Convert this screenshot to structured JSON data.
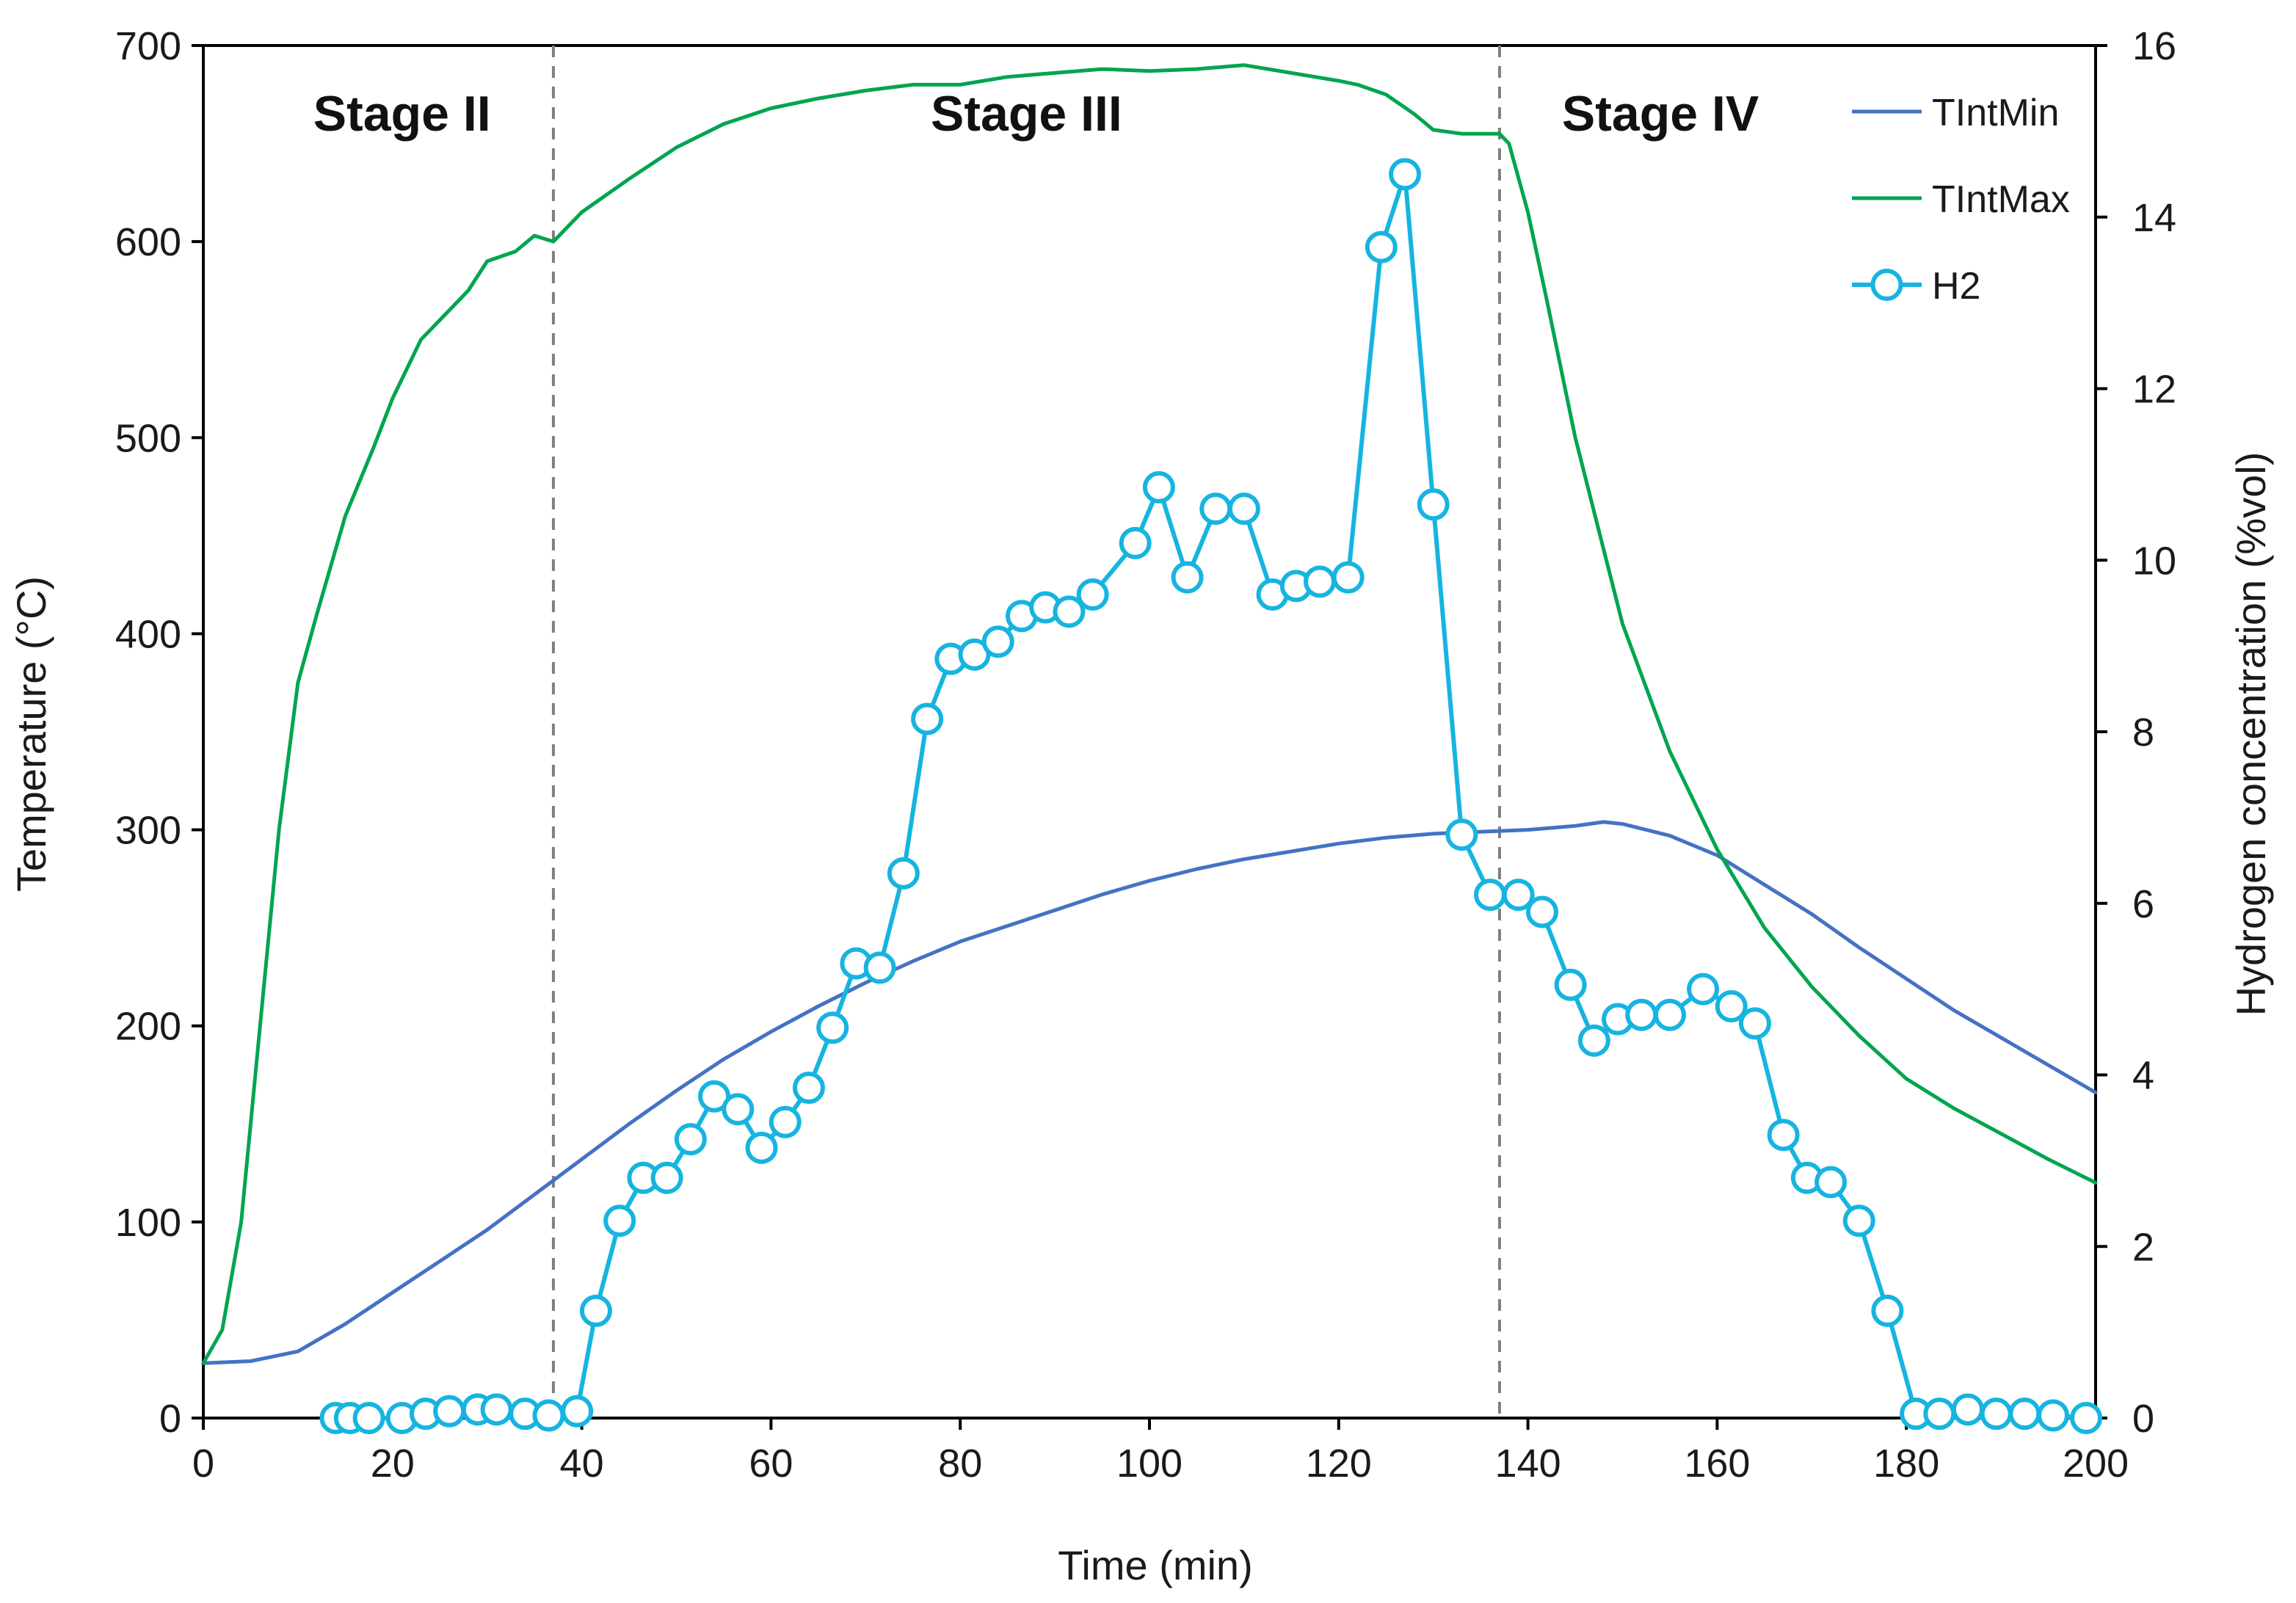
{
  "chart_data": {
    "type": "line",
    "xlabel": "Time (min)",
    "ylabel_left": "Temperature  (°C)",
    "ylabel_right": "Hydrogen concentration  (%vol)",
    "xlim": [
      0,
      200
    ],
    "ylim_left": [
      0,
      700
    ],
    "ylim_right": [
      0,
      16
    ],
    "x_ticks": [
      0,
      20,
      40,
      60,
      80,
      100,
      120,
      140,
      160,
      180,
      200
    ],
    "y_ticks_left": [
      0,
      100,
      200,
      300,
      400,
      500,
      600,
      700
    ],
    "y_ticks_right": [
      0,
      2,
      4,
      6,
      8,
      10,
      12,
      14,
      16
    ],
    "grid": false,
    "stage_dividers": [
      37,
      137
    ],
    "stage_labels": [
      {
        "text": "Stage II",
        "x": 21
      },
      {
        "text": "Stage III",
        "x": 87
      },
      {
        "text": "Stage IV",
        "x": 154
      }
    ],
    "legend": {
      "position": "top-right",
      "entries": [
        {
          "name": "TIntMin",
          "color": "#4472C4",
          "marker": "none"
        },
        {
          "name": "TIntMax",
          "color": "#00A550",
          "marker": "none"
        },
        {
          "name": "H2",
          "color": "#16B4E0",
          "marker": "circle"
        }
      ]
    },
    "series": [
      {
        "name": "TIntMin",
        "axis": "left",
        "color": "#4472C4",
        "x": [
          0,
          5,
          10,
          15,
          20,
          25,
          30,
          35,
          40,
          45,
          50,
          55,
          60,
          65,
          70,
          75,
          80,
          85,
          90,
          95,
          100,
          105,
          110,
          115,
          120,
          125,
          130,
          135,
          140,
          145,
          148,
          150,
          155,
          160,
          165,
          170,
          175,
          180,
          185,
          190,
          195,
          200
        ],
        "y": [
          28,
          29,
          34,
          48,
          64,
          80,
          96,
          114,
          132,
          150,
          167,
          183,
          197,
          210,
          222,
          233,
          243,
          251,
          259,
          267,
          274,
          280,
          285,
          289,
          293,
          296,
          298,
          299,
          300,
          302,
          304,
          303,
          297,
          287,
          272,
          257,
          240,
          224,
          208,
          194,
          180,
          166
        ]
      },
      {
        "name": "TIntMax",
        "axis": "left",
        "color": "#00A550",
        "x": [
          0,
          2,
          4,
          6,
          8,
          10,
          12,
          15,
          18,
          20,
          23,
          25,
          28,
          30,
          33,
          35,
          37,
          40,
          45,
          50,
          55,
          60,
          65,
          70,
          75,
          80,
          85,
          90,
          95,
          100,
          105,
          110,
          115,
          120,
          122,
          125,
          128,
          130,
          133,
          136,
          137,
          138,
          140,
          142,
          145,
          150,
          155,
          160,
          165,
          170,
          175,
          180,
          185,
          190,
          195,
          200
        ],
        "y": [
          28,
          45,
          100,
          200,
          300,
          375,
          410,
          460,
          495,
          520,
          550,
          560,
          575,
          590,
          595,
          603,
          600,
          615,
          632,
          648,
          660,
          668,
          673,
          677,
          680,
          680,
          684,
          686,
          688,
          687,
          688,
          690,
          686,
          682,
          680,
          675,
          665,
          657,
          655,
          655,
          655,
          650,
          615,
          570,
          500,
          405,
          340,
          290,
          250,
          220,
          195,
          173,
          158,
          145,
          132,
          120
        ]
      },
      {
        "name": "H2",
        "axis": "right",
        "color": "#16B4E0",
        "marker": "circle",
        "x": [
          14,
          15.5,
          17.5,
          21,
          23.5,
          26,
          29,
          31,
          34,
          36.5,
          39.5,
          41.5,
          44,
          46.5,
          49,
          51.5,
          54,
          56.5,
          59,
          61.5,
          64,
          66.5,
          69,
          71.5,
          74,
          76.5,
          79,
          81.5,
          84,
          86.5,
          89,
          91.5,
          94,
          98.5,
          101,
          104,
          107,
          110,
          113,
          115.5,
          118,
          121,
          124.5,
          127,
          130,
          133,
          136,
          139,
          141.5,
          144.5,
          147,
          149.5,
          152,
          155,
          158.5,
          161.5,
          164,
          167,
          169.5,
          172,
          175,
          178,
          181,
          183.5,
          186.5,
          189.5,
          192.5,
          195.5,
          199
        ],
        "y": [
          0.0,
          0.0,
          0.0,
          0.0,
          0.05,
          0.08,
          0.1,
          0.1,
          0.05,
          0.03,
          0.08,
          1.25,
          2.3,
          2.8,
          2.8,
          3.25,
          3.75,
          3.6,
          3.15,
          3.45,
          3.85,
          4.55,
          5.3,
          5.25,
          6.35,
          8.15,
          8.85,
          8.9,
          9.05,
          9.35,
          9.45,
          9.4,
          9.6,
          10.2,
          10.85,
          9.8,
          10.6,
          10.6,
          9.6,
          9.7,
          9.75,
          9.8,
          13.65,
          14.5,
          10.65,
          6.8,
          6.1,
          6.1,
          5.9,
          5.05,
          4.4,
          4.65,
          4.7,
          4.7,
          5.0,
          4.8,
          4.6,
          3.3,
          2.8,
          2.75,
          2.3,
          1.25,
          0.05,
          0.05,
          0.1,
          0.05,
          0.05,
          0.03,
          0.0
        ]
      }
    ]
  }
}
